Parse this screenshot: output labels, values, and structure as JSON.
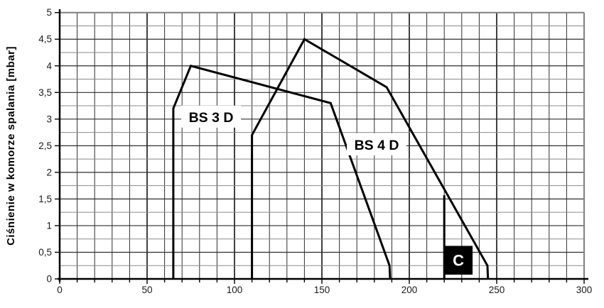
{
  "chart_data": {
    "type": "line",
    "ylabel": "Ciśnienie w komorze spalania [mbar]",
    "xlim": [
      0,
      300
    ],
    "ylim": [
      0,
      5
    ],
    "x_tick_values": [
      0,
      50,
      100,
      150,
      200,
      250,
      300
    ],
    "x_tick_labels": [
      "0",
      "50",
      "100",
      "150",
      "200",
      "250",
      "300"
    ],
    "x_minor_step": 10,
    "y_tick_values": [
      0,
      0.5,
      1,
      1.5,
      2,
      2.5,
      3,
      3.5,
      4,
      4.5,
      5
    ],
    "y_tick_labels": [
      "0",
      "0,5",
      "1",
      "1,5",
      "2",
      "2,5",
      "3",
      "3,5",
      "4",
      "4,5",
      "5"
    ],
    "y_minor_step": 0.25,
    "grid": true,
    "legend_position": "none",
    "series": [
      {
        "name": "BS 3 D",
        "points": [
          [
            65,
            0
          ],
          [
            65,
            3.2
          ],
          [
            75,
            4.0
          ],
          [
            155,
            3.3
          ],
          [
            188.7,
            0.25
          ],
          [
            189,
            0
          ]
        ],
        "label": "BS 3 D",
        "label_pos": [
          86.6,
          3.04
        ]
      },
      {
        "name": "BS 4 D",
        "points": [
          [
            110,
            0
          ],
          [
            110,
            2.7
          ],
          [
            140,
            4.5
          ],
          [
            187,
            3.6
          ],
          [
            244.7,
            0.25
          ],
          [
            245,
            0
          ]
        ],
        "label": "BS 4 D",
        "label_pos": [
          181.3,
          2.52
        ]
      }
    ],
    "annotations": [
      {
        "kind": "boundary-line",
        "name": "c-boundary-line",
        "points": [
          [
            220,
            0
          ],
          [
            220,
            1.57
          ]
        ]
      },
      {
        "kind": "marker-box",
        "name": "c-marker",
        "label": "C",
        "x_range": [
          220,
          236.2
        ],
        "y_range": [
          0.08,
          0.62
        ]
      }
    ],
    "colors": {
      "envelope_line": "#000000",
      "grid_major": "#2e2e2e",
      "grid_minor": "#8a8a8a",
      "frame": "#808080",
      "axis": "#000000",
      "marker_bg": "#000000",
      "marker_text": "#ffffff",
      "tick_label": "#1a1a1a",
      "label_bg": "#ffffff"
    }
  }
}
